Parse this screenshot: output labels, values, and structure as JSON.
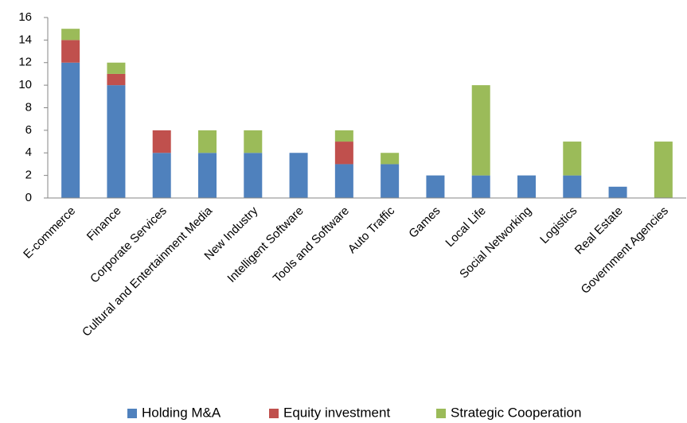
{
  "chart_data": {
    "type": "stacked_bar",
    "categories": [
      "E-commerce",
      "Finance",
      "Corporate Services",
      "Cultural and Entertainment Media",
      "New Industry",
      "Intelligent Software",
      "Tools and Software",
      "Auto Traffic",
      "Games",
      "Local Life",
      "Social Networking",
      "Logistics",
      "Real Estate",
      "Government Agencies"
    ],
    "series": [
      {
        "name": "Holding M&A",
        "color": "#4f81bd",
        "values": [
          12,
          10,
          4,
          4,
          4,
          4,
          3,
          3,
          2,
          2,
          2,
          2,
          1,
          0
        ]
      },
      {
        "name": "Equity investment",
        "color": "#c0504d",
        "values": [
          2,
          1,
          2,
          0,
          0,
          0,
          2,
          0,
          0,
          0,
          0,
          0,
          0,
          0
        ]
      },
      {
        "name": "Strategic Cooperation",
        "color": "#9bbb59",
        "values": [
          1,
          1,
          0,
          2,
          2,
          0,
          1,
          1,
          0,
          8,
          0,
          3,
          0,
          5
        ]
      }
    ],
    "ylim": [
      0,
      16
    ],
    "yticks": [
      0,
      2,
      4,
      6,
      8,
      10,
      12,
      14,
      16
    ],
    "grid": false,
    "legend": "bottom"
  }
}
